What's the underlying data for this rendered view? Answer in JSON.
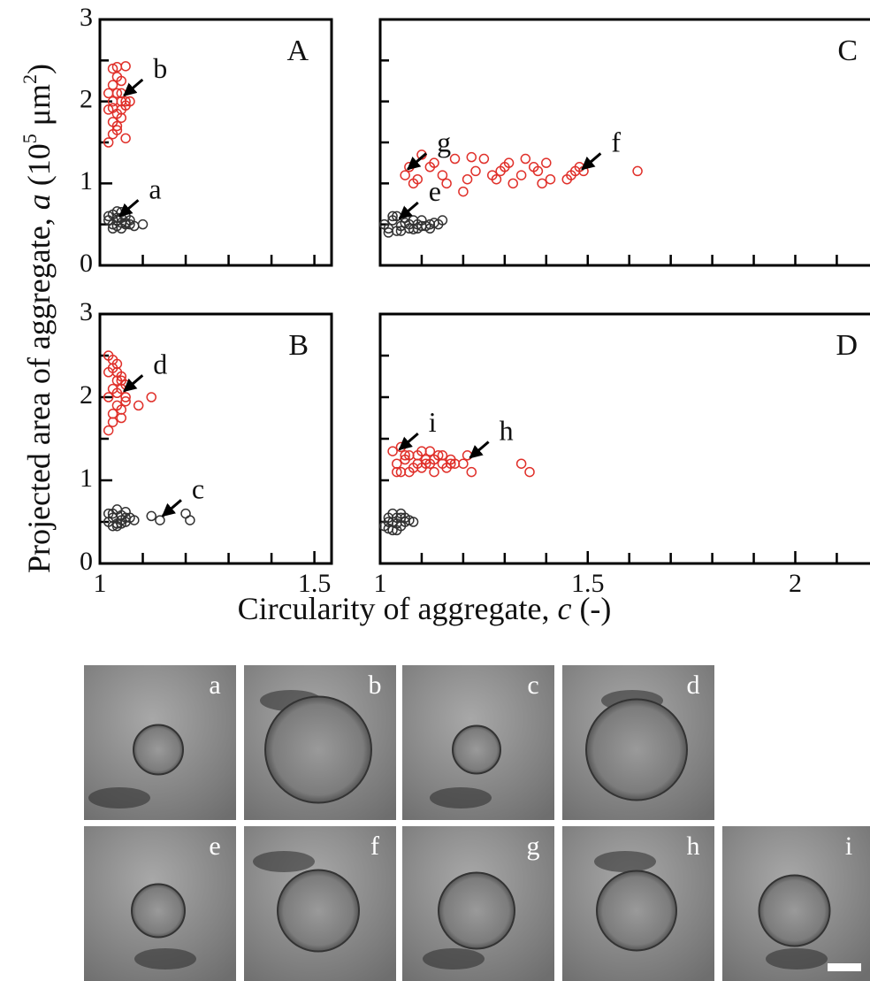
{
  "chart_data": [
    {
      "type": "scatter",
      "title": "A",
      "xlim": [
        1,
        1.54
      ],
      "ylim": [
        0,
        3
      ],
      "yticks": [
        0,
        1,
        2,
        3
      ],
      "yminor": [
        0.5,
        1.5,
        2.5
      ],
      "xminor": [
        1.1,
        1.2,
        1.3,
        1.4,
        1.5
      ],
      "series": [
        {
          "color": "#333333",
          "x": [
            1.02,
            1.03,
            1.03,
            1.04,
            1.04,
            1.05,
            1.05,
            1.06,
            1.06,
            1.07,
            1.08,
            1.1,
            1.02,
            1.04,
            1.05,
            1.03,
            1.06,
            1.07,
            1.04,
            1.05
          ],
          "values": [
            0.55,
            0.5,
            0.62,
            0.48,
            0.58,
            0.52,
            0.65,
            0.5,
            0.6,
            0.55,
            0.48,
            0.5,
            0.6,
            0.66,
            0.45,
            0.45,
            0.52,
            0.5,
            0.55,
            0.58
          ]
        },
        {
          "color": "#e0302a",
          "x": [
            1.02,
            1.03,
            1.03,
            1.04,
            1.04,
            1.05,
            1.05,
            1.06,
            1.06,
            1.03,
            1.04,
            1.05,
            1.02,
            1.03,
            1.06,
            1.04,
            1.05,
            1.03,
            1.04,
            1.06,
            1.02,
            1.05,
            1.07,
            1.04,
            1.03
          ],
          "values": [
            1.5,
            1.6,
            2.4,
            2.42,
            1.7,
            1.8,
            2.0,
            1.55,
            2.43,
            2.0,
            2.1,
            1.9,
            1.9,
            2.2,
            2.0,
            2.3,
            2.25,
            1.75,
            1.85,
            1.95,
            2.1,
            2.1,
            2.0,
            1.65,
            1.92
          ]
        }
      ],
      "annotations": [
        {
          "text": "b",
          "x": 1.05,
          "y": 2.05
        },
        {
          "text": "a",
          "x": 1.04,
          "y": 0.58
        }
      ]
    },
    {
      "type": "scatter",
      "title": "B",
      "xlim": [
        1,
        1.54
      ],
      "ylim": [
        0,
        3
      ],
      "yticks": [
        0,
        1,
        2,
        3
      ],
      "yminor": [
        0.5,
        1.5,
        2.5
      ],
      "xticks": [
        1,
        1.5
      ],
      "xminor": [
        1.1,
        1.2,
        1.3,
        1.4
      ],
      "series": [
        {
          "color": "#333333",
          "x": [
            1.02,
            1.03,
            1.03,
            1.04,
            1.04,
            1.05,
            1.05,
            1.06,
            1.06,
            1.07,
            1.08,
            1.02,
            1.04,
            1.03,
            1.05,
            1.06,
            1.12,
            1.14,
            1.2,
            1.21
          ],
          "values": [
            0.5,
            0.55,
            0.6,
            0.48,
            0.65,
            0.52,
            0.58,
            0.5,
            0.62,
            0.55,
            0.52,
            0.6,
            0.45,
            0.45,
            0.48,
            0.55,
            0.57,
            0.52,
            0.6,
            0.52
          ]
        },
        {
          "color": "#e0302a",
          "x": [
            1.02,
            1.02,
            1.03,
            1.03,
            1.04,
            1.04,
            1.05,
            1.05,
            1.06,
            1.06,
            1.03,
            1.04,
            1.05,
            1.02,
            1.03,
            1.04,
            1.05,
            1.06,
            1.09,
            1.12,
            1.03,
            1.04,
            1.02,
            1.05
          ],
          "values": [
            2.5,
            1.6,
            2.45,
            1.8,
            2.3,
            1.9,
            2.2,
            1.75,
            2.0,
            2.15,
            2.1,
            2.05,
            1.85,
            2.0,
            2.35,
            2.4,
            2.25,
            1.95,
            1.9,
            2.0,
            1.7,
            2.2,
            2.3,
            2.1
          ]
        }
      ],
      "annotations": [
        {
          "text": "d",
          "x": 1.05,
          "y": 2.05
        },
        {
          "text": "c",
          "x": 1.14,
          "y": 0.55
        }
      ]
    },
    {
      "type": "scatter",
      "title": "C",
      "xlim": [
        1,
        2.18
      ],
      "ylim": [
        0,
        3
      ],
      "yminor": [
        0.5,
        1,
        1.5,
        2,
        2.5
      ],
      "xminor": [
        1.1,
        1.2,
        1.3,
        1.4,
        1.5,
        1.6,
        1.7,
        1.8,
        1.9,
        2,
        2.1
      ],
      "series": [
        {
          "color": "#333333",
          "x": [
            1.01,
            1.02,
            1.03,
            1.04,
            1.05,
            1.06,
            1.07,
            1.08,
            1.09,
            1.1,
            1.11,
            1.12,
            1.13,
            1.14,
            1.15,
            1.02,
            1.04,
            1.06,
            1.08,
            1.1,
            1.03,
            1.05,
            1.07,
            1.09,
            1.12
          ],
          "values": [
            0.5,
            0.45,
            0.55,
            0.6,
            0.48,
            0.52,
            0.45,
            0.55,
            0.5,
            0.55,
            0.48,
            0.5,
            0.52,
            0.5,
            0.55,
            0.4,
            0.42,
            0.58,
            0.44,
            0.48,
            0.6,
            0.42,
            0.5,
            0.45,
            0.45
          ]
        },
        {
          "color": "#e0302a",
          "x": [
            1.06,
            1.07,
            1.09,
            1.1,
            1.12,
            1.15,
            1.16,
            1.18,
            1.2,
            1.21,
            1.22,
            1.23,
            1.25,
            1.27,
            1.28,
            1.29,
            1.3,
            1.31,
            1.32,
            1.34,
            1.35,
            1.37,
            1.38,
            1.39,
            1.4,
            1.41,
            1.45,
            1.46,
            1.47,
            1.48,
            1.49,
            1.62,
            1.08,
            1.13
          ],
          "values": [
            1.1,
            1.2,
            1.05,
            1.35,
            1.2,
            1.1,
            1.0,
            1.3,
            0.9,
            1.05,
            1.32,
            1.15,
            1.3,
            1.1,
            1.05,
            1.15,
            1.2,
            1.25,
            1.0,
            1.1,
            1.3,
            1.2,
            1.15,
            1.0,
            1.25,
            1.05,
            1.05,
            1.1,
            1.15,
            1.2,
            1.15,
            1.15,
            1.0,
            1.25
          ]
        }
      ],
      "annotations": [
        {
          "text": "g",
          "x": 1.06,
          "y": 1.15
        },
        {
          "text": "f",
          "x": 1.48,
          "y": 1.15
        },
        {
          "text": "e",
          "x": 1.04,
          "y": 0.55
        }
      ]
    },
    {
      "type": "scatter",
      "title": "D",
      "xlim": [
        1,
        2.18
      ],
      "ylim": [
        0,
        3
      ],
      "yminor": [
        0.5,
        1,
        1.5,
        2,
        2.5
      ],
      "xticks": [
        1,
        1.5,
        2
      ],
      "xminor": [
        1.1,
        1.2,
        1.3,
        1.4,
        1.6,
        1.7,
        1.8,
        1.9,
        2.1
      ],
      "series": [
        {
          "color": "#333333",
          "x": [
            1.01,
            1.02,
            1.02,
            1.03,
            1.03,
            1.04,
            1.04,
            1.05,
            1.05,
            1.06,
            1.06,
            1.07,
            1.08,
            1.02,
            1.04,
            1.03,
            1.05
          ],
          "values": [
            0.45,
            0.5,
            0.55,
            0.4,
            0.6,
            0.48,
            0.55,
            0.45,
            0.6,
            0.5,
            0.55,
            0.52,
            0.5,
            0.42,
            0.4,
            0.5,
            0.55
          ]
        },
        {
          "color": "#e0302a",
          "x": [
            1.03,
            1.04,
            1.05,
            1.06,
            1.07,
            1.08,
            1.09,
            1.1,
            1.11,
            1.12,
            1.13,
            1.14,
            1.15,
            1.16,
            1.17,
            1.18,
            1.2,
            1.21,
            1.22,
            1.34,
            1.36,
            1.05,
            1.07,
            1.09,
            1.11,
            1.13,
            1.15,
            1.17,
            1.04,
            1.06,
            1.1,
            1.12
          ],
          "values": [
            1.35,
            1.2,
            1.1,
            1.25,
            1.3,
            1.15,
            1.2,
            1.35,
            1.25,
            1.2,
            1.1,
            1.3,
            1.2,
            1.15,
            1.25,
            1.2,
            1.2,
            1.3,
            1.1,
            1.2,
            1.1,
            1.4,
            1.1,
            1.3,
            1.2,
            1.25,
            1.3,
            1.2,
            1.1,
            1.3,
            1.15,
            1.35
          ]
        }
      ],
      "annotations": [
        {
          "text": "i",
          "x": 1.04,
          "y": 1.35
        },
        {
          "text": "h",
          "x": 1.21,
          "y": 1.25
        }
      ]
    }
  ],
  "shared": {
    "ylabel_parts": [
      "Projected area of aggregate, ",
      "a",
      " (10",
      "5",
      " μm",
      "2",
      ")"
    ],
    "xlabel_parts": [
      "Circularity of aggregate, ",
      "c",
      " (-)"
    ]
  },
  "micrographs": {
    "labels": [
      "a",
      "b",
      "c",
      "d",
      "e",
      "f",
      "g",
      "h",
      "i"
    ]
  }
}
